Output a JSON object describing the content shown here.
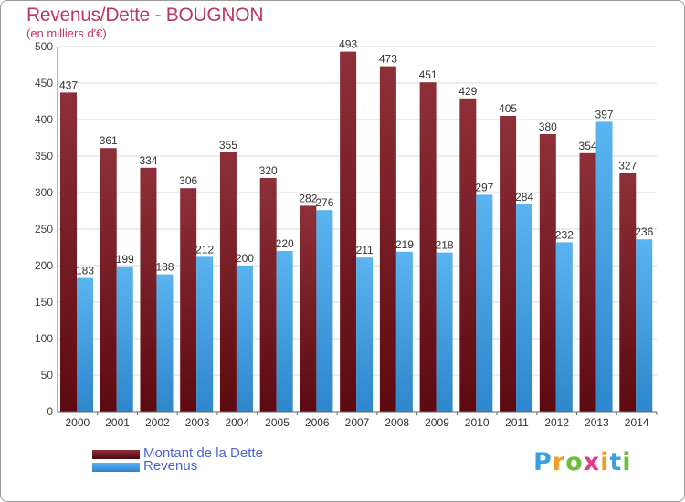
{
  "header": {
    "title": "Revenus/Dette - BOUGNON",
    "subtitle": "(en milliers d'€)"
  },
  "legend": {
    "debt_label": "Montant de la Dette",
    "revenue_label": "Revenus"
  },
  "logo": {
    "letters": [
      "P",
      "r",
      "o",
      "x",
      "i",
      "t",
      "i"
    ],
    "colors": [
      "#3aa0e0",
      "#f0a020",
      "#6cbf3c",
      "#e03a8c",
      "#f0a020",
      "#3aa0e0",
      "#6cbf3c"
    ]
  },
  "colors": {
    "debt": "#7a1f28",
    "revenue": "#4aa8e8",
    "title": "#c0365a",
    "grid": "#d8d8d8"
  },
  "chart_data": {
    "type": "bar",
    "title": "Revenus/Dette - BOUGNON",
    "subtitle": "(en milliers d'€)",
    "categories": [
      "2000",
      "2001",
      "2002",
      "2003",
      "2004",
      "2005",
      "2006",
      "2007",
      "2008",
      "2009",
      "2010",
      "2011",
      "2012",
      "2013",
      "2014"
    ],
    "series": [
      {
        "name": "Montant de la Dette",
        "values": [
          437,
          361,
          334,
          306,
          355,
          320,
          282,
          493,
          473,
          451,
          429,
          405,
          380,
          354,
          327
        ]
      },
      {
        "name": "Revenus",
        "values": [
          183,
          199,
          188,
          212,
          200,
          220,
          276,
          211,
          219,
          218,
          297,
          284,
          232,
          397,
          236
        ]
      }
    ],
    "ylim": [
      0,
      500
    ],
    "yticks": [
      0,
      50,
      100,
      150,
      200,
      250,
      300,
      350,
      400,
      450,
      500
    ],
    "grid": true,
    "legend_position": "bottom-left"
  }
}
